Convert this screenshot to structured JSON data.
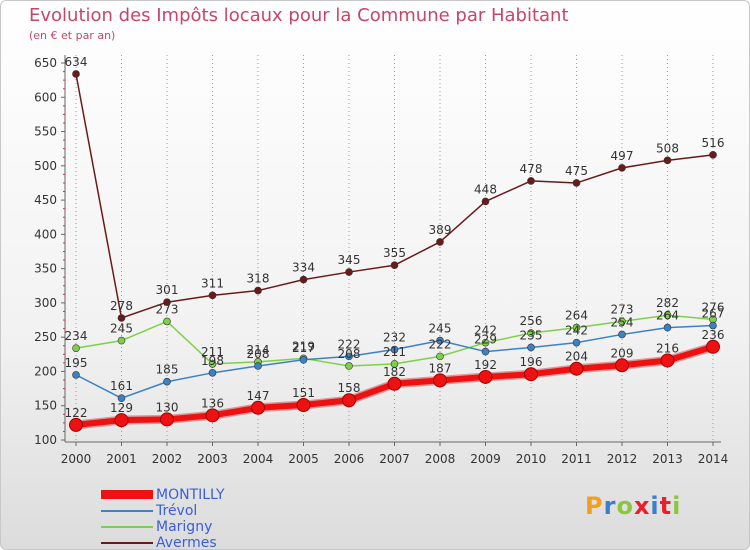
{
  "title": "Evolution des Impôts locaux pour la Commune par Habitant",
  "subtitle": "(en € et par an)",
  "logo": {
    "text": "Proxiti",
    "colors": [
      "#f0a01e",
      "#3a7fc8",
      "#8cc63f",
      "#e8202a",
      "#3a7fc8",
      "#e8202a",
      "#8cc63f"
    ]
  },
  "chart_data": {
    "type": "line",
    "title": "Evolution des Impôts locaux pour la Commune par Habitant",
    "ylabel": "(en € et par an)",
    "x": [
      "2000",
      "2001",
      "2002",
      "2003",
      "2004",
      "2005",
      "2006",
      "2007",
      "2008",
      "2009",
      "2010",
      "2011",
      "2012",
      "2013",
      "2014"
    ],
    "ylim": [
      100,
      650
    ],
    "yticks": [
      100,
      150,
      200,
      250,
      300,
      350,
      400,
      450,
      500,
      550,
      600,
      650
    ],
    "grid": "vertical dotted",
    "legend": "bottom-left",
    "series": [
      {
        "name": "Avermes",
        "color": "#6b1a1a",
        "values": [
          634,
          278,
          301,
          311,
          318,
          334,
          345,
          355,
          389,
          448,
          478,
          475,
          497,
          508,
          516
        ]
      },
      {
        "name": "Marigny",
        "color": "#7ed146",
        "values": [
          234,
          245,
          273,
          211,
          214,
          219,
          208,
          211,
          222,
          242,
          256,
          264,
          273,
          282,
          276
        ]
      },
      {
        "name": "Trévol",
        "color": "#3b82c4",
        "values": [
          195,
          161,
          185,
          198,
          208,
          217,
          222,
          232,
          245,
          229,
          235,
          242,
          254,
          264,
          267
        ]
      },
      {
        "name": "MONTILLY",
        "color": "#ee1111",
        "values": [
          122,
          129,
          130,
          136,
          147,
          151,
          158,
          182,
          187,
          192,
          196,
          204,
          209,
          216,
          236
        ]
      }
    ],
    "legend_order": [
      "MONTILLY",
      "Trévol",
      "Marigny",
      "Avermes"
    ]
  }
}
